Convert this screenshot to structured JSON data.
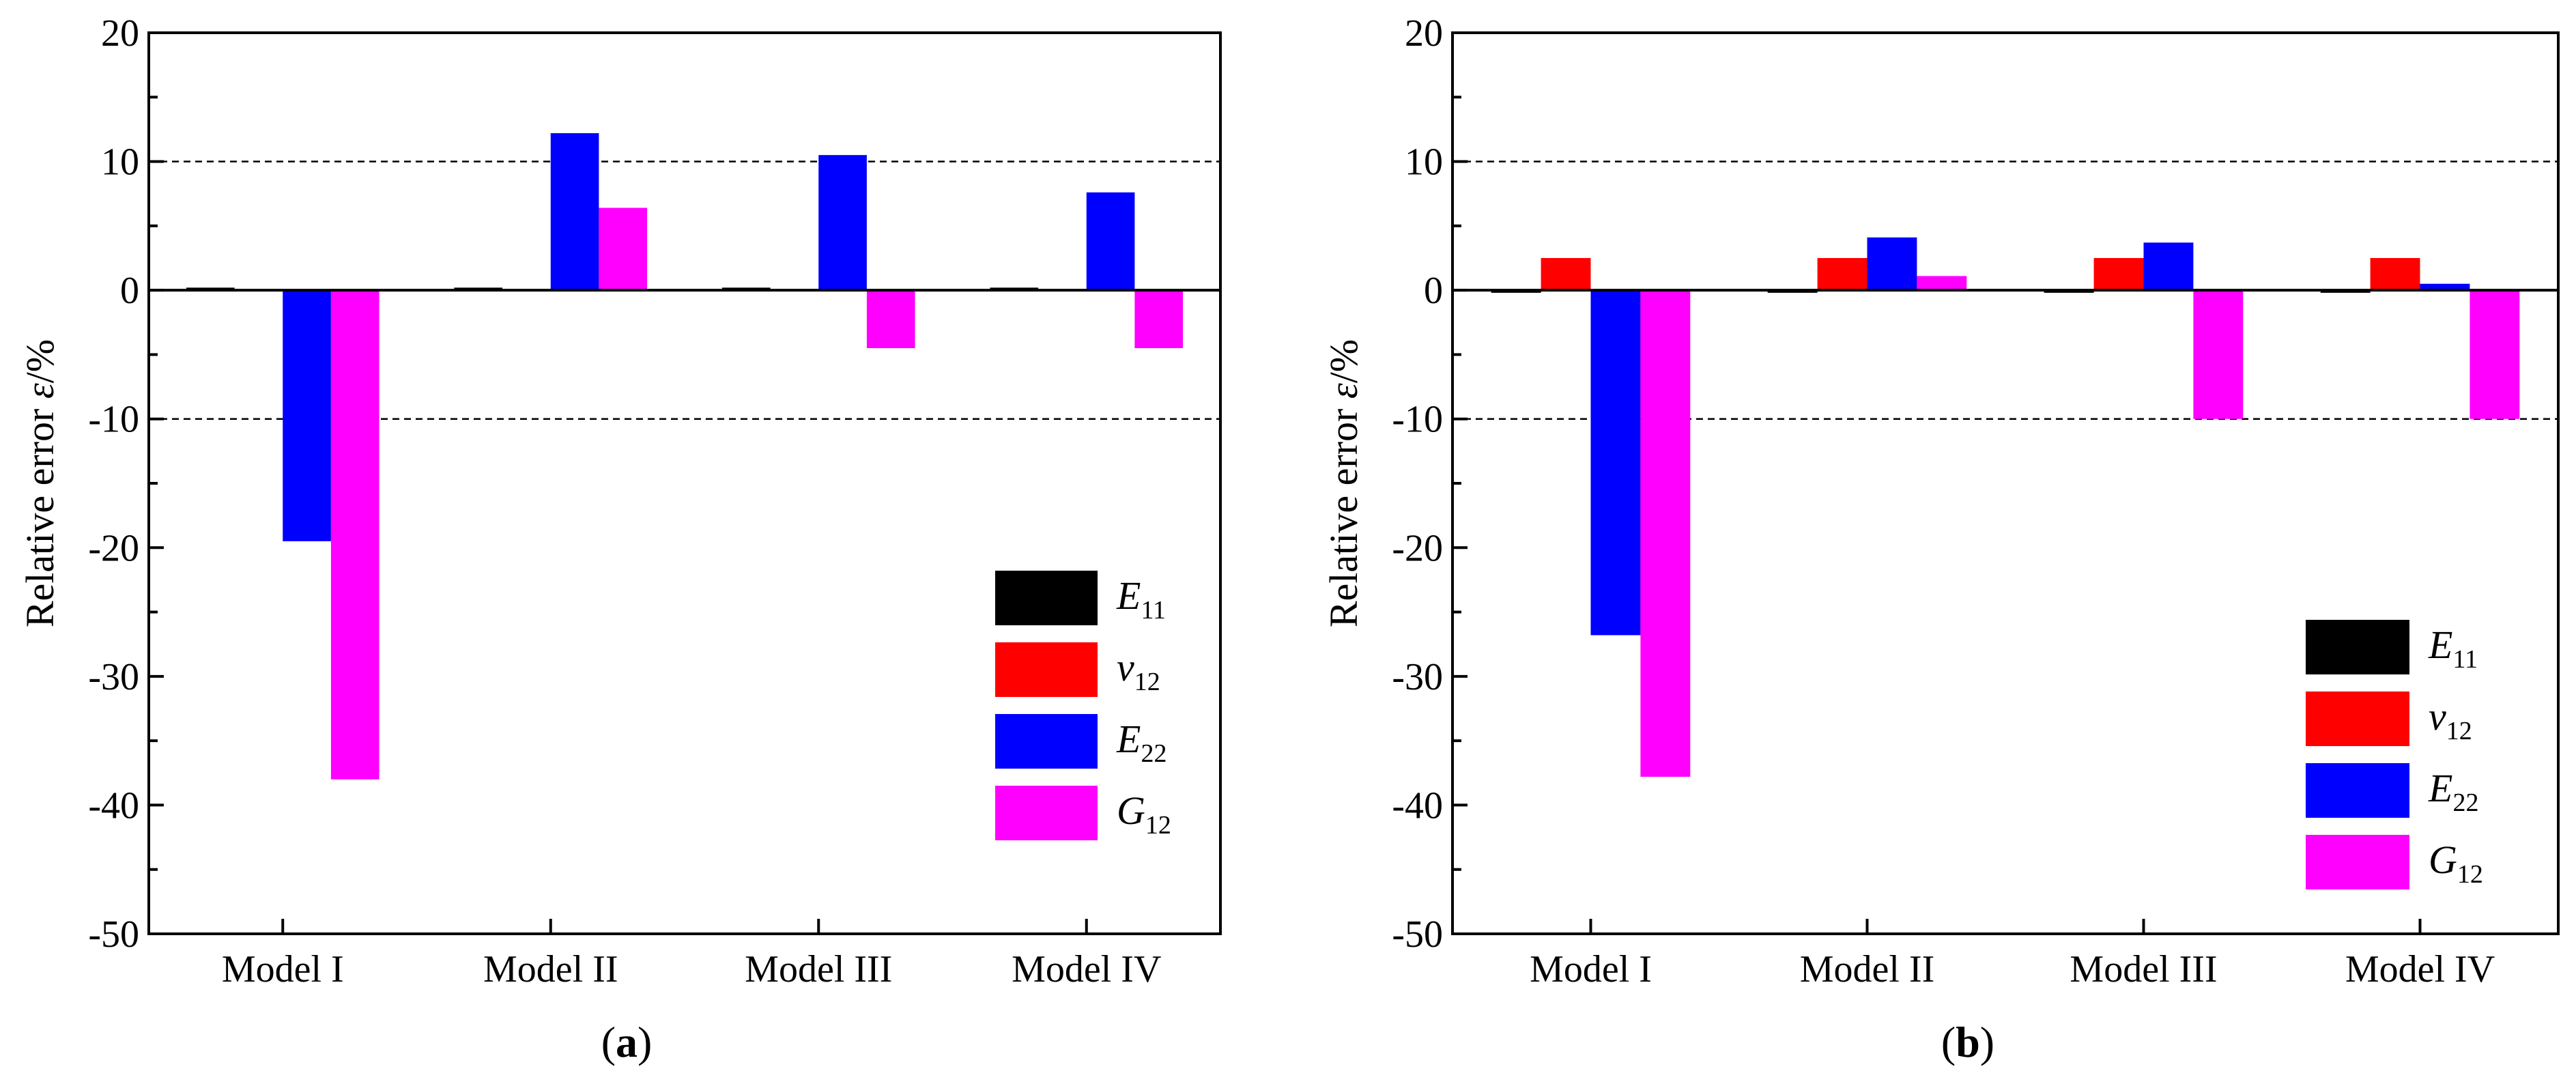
{
  "chart_data": [
    {
      "type": "bar",
      "panel_label": "a",
      "categories": [
        "Model I",
        "Model II",
        "Model III",
        "Model IV"
      ],
      "series": [
        {
          "name": "E11",
          "symbol": "E",
          "subscript": "11",
          "color": "#000000",
          "values": [
            0.2,
            0.2,
            0.2,
            0.2
          ]
        },
        {
          "name": "v12",
          "symbol": "v",
          "subscript": "12",
          "color": "#ff0000",
          "values": [
            0,
            0,
            0,
            0
          ]
        },
        {
          "name": "E22",
          "symbol": "E",
          "subscript": "22",
          "color": "#0000ff",
          "values": [
            -19.5,
            12.2,
            10.5,
            7.6
          ]
        },
        {
          "name": "G12",
          "symbol": "G",
          "subscript": "12",
          "color": "#ff00ff",
          "values": [
            -38.0,
            6.4,
            -4.5,
            -4.5
          ]
        }
      ],
      "ylabel_text": "Relative error ",
      "ylabel_symbol": "ε",
      "ylabel_unit": "/%",
      "ylim": [
        -50,
        20
      ],
      "yticks": [
        20,
        10,
        0,
        -10,
        -20,
        -30,
        -40,
        -50
      ],
      "reference_lines": [
        10,
        -10
      ],
      "legend_position": "bottom-right"
    },
    {
      "type": "bar",
      "panel_label": "b",
      "categories": [
        "Model I",
        "Model II",
        "Model III",
        "Model IV"
      ],
      "series": [
        {
          "name": "E11",
          "symbol": "E",
          "subscript": "11",
          "color": "#000000",
          "values": [
            -0.2,
            -0.2,
            -0.2,
            -0.2
          ]
        },
        {
          "name": "v12",
          "symbol": "v",
          "subscript": "12",
          "color": "#ff0000",
          "values": [
            2.5,
            2.5,
            2.5,
            2.5
          ]
        },
        {
          "name": "E22",
          "symbol": "E",
          "subscript": "22",
          "color": "#0000ff",
          "values": [
            -26.8,
            4.1,
            3.7,
            0.5
          ]
        },
        {
          "name": "G12",
          "symbol": "G",
          "subscript": "12",
          "color": "#ff00ff",
          "values": [
            -37.8,
            1.1,
            -10.0,
            -10.0
          ]
        }
      ],
      "ylabel_text": "Relative error ",
      "ylabel_symbol": "ε",
      "ylabel_unit": "/%",
      "ylim": [
        -50,
        20
      ],
      "yticks": [
        20,
        10,
        0,
        -10,
        -20,
        -30,
        -40,
        -50
      ],
      "reference_lines": [
        10,
        -10
      ],
      "legend_position": "bottom-right"
    }
  ]
}
